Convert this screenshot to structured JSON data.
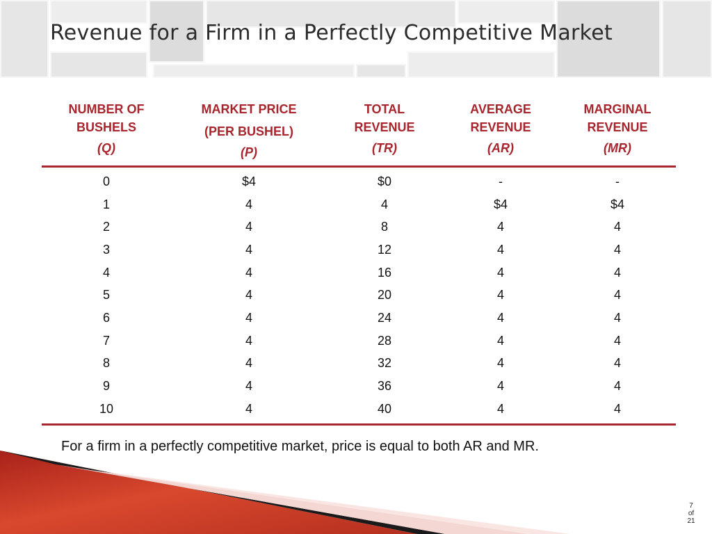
{
  "slide": {
    "title": "Revenue for a Firm in a Perfectly Competitive Market",
    "note": "For a firm in a perfectly competitive market, price is equal to both AR and MR.",
    "page": {
      "current": "7",
      "of": "of",
      "total": "21"
    },
    "accent_color": "#a8252d"
  },
  "table": {
    "headers": [
      {
        "lines": [
          "NUMBER OF",
          "BUSHELS"
        ],
        "symbol": "(Q)"
      },
      {
        "lines": [
          "MARKET PRICE",
          "(PER BUSHEL)"
        ],
        "symbol": "(P)"
      },
      {
        "lines": [
          "TOTAL",
          "REVENUE"
        ],
        "symbol": "(TR)"
      },
      {
        "lines": [
          "AVERAGE",
          "REVENUE"
        ],
        "symbol": "(AR)"
      },
      {
        "lines": [
          "MARGINAL",
          "REVENUE"
        ],
        "symbol": "(MR)"
      }
    ],
    "rows": [
      [
        "0",
        "$4",
        "$0",
        "-",
        "-"
      ],
      [
        "1",
        "4",
        "4",
        "$4",
        "$4"
      ],
      [
        "2",
        "4",
        "8",
        "4",
        "4"
      ],
      [
        "3",
        "4",
        "12",
        "4",
        "4"
      ],
      [
        "4",
        "4",
        "16",
        "4",
        "4"
      ],
      [
        "5",
        "4",
        "20",
        "4",
        "4"
      ],
      [
        "6",
        "4",
        "24",
        "4",
        "4"
      ],
      [
        "7",
        "4",
        "28",
        "4",
        "4"
      ],
      [
        "8",
        "4",
        "32",
        "4",
        "4"
      ],
      [
        "9",
        "4",
        "36",
        "4",
        "4"
      ],
      [
        "10",
        "4",
        "40",
        "4",
        "4"
      ]
    ]
  }
}
